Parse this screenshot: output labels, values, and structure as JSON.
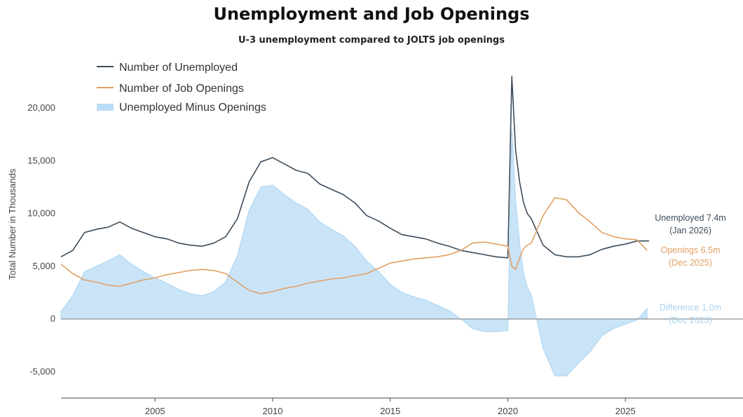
{
  "chart_data": {
    "type": "line",
    "title": "Unemployment and Job Openings",
    "subtitle": "U-3 unemployment compared to JOLTS job openings",
    "ylabel": "Total Number in Thousands",
    "xlabel": "",
    "xlim": [
      2001.0,
      2030.0
    ],
    "ylim": [
      -7500,
      24000
    ],
    "x_ticks": [
      2005,
      2010,
      2015,
      2020,
      2025
    ],
    "y_ticks": [
      -5000,
      0,
      5000,
      10000,
      15000,
      20000
    ],
    "x_tick_labels": [
      "2005",
      "2010",
      "2015",
      "2020",
      "2025"
    ],
    "y_tick_labels": [
      "-5,000",
      "0",
      "5,000",
      "10,000",
      "15,000",
      "20,000"
    ],
    "grid": false,
    "legend_position": "top-left",
    "series": [
      {
        "name": "Number of Unemployed",
        "type": "line",
        "color": "#3d4c5a",
        "x": [
          2001.0,
          2001.5,
          2002.0,
          2002.5,
          2003.0,
          2003.5,
          2004.0,
          2004.5,
          2005.0,
          2005.5,
          2006.0,
          2006.5,
          2007.0,
          2007.5,
          2008.0,
          2008.5,
          2009.0,
          2009.5,
          2010.0,
          2010.5,
          2011.0,
          2011.5,
          2012.0,
          2012.5,
          2013.0,
          2013.5,
          2014.0,
          2014.5,
          2015.0,
          2015.5,
          2016.0,
          2016.5,
          2017.0,
          2017.5,
          2018.0,
          2018.5,
          2019.0,
          2019.5,
          2020.0,
          2020.17,
          2020.33,
          2020.5,
          2020.67,
          2020.83,
          2021.0,
          2021.5,
          2022.0,
          2022.5,
          2023.0,
          2023.5,
          2024.0,
          2024.5,
          2025.0,
          2025.5,
          2026.0
        ],
        "y": [
          5900,
          6500,
          8200,
          8500,
          8700,
          9200,
          8600,
          8200,
          7800,
          7600,
          7200,
          7000,
          6900,
          7200,
          7800,
          9500,
          13000,
          14900,
          15300,
          14700,
          14100,
          13800,
          12800,
          12300,
          11800,
          11000,
          9800,
          9300,
          8600,
          8000,
          7800,
          7600,
          7200,
          6900,
          6500,
          6300,
          6100,
          5900,
          5800,
          23000,
          16000,
          13000,
          11000,
          10000,
          9500,
          7000,
          6100,
          5900,
          5900,
          6100,
          6600,
          6900,
          7100,
          7400,
          7400
        ]
      },
      {
        "name": "Number of Job Openings",
        "type": "line",
        "color": "#e0a064",
        "x": [
          2001.0,
          2001.5,
          2002.0,
          2002.5,
          2003.0,
          2003.5,
          2004.0,
          2004.5,
          2005.0,
          2005.5,
          2006.0,
          2006.5,
          2007.0,
          2007.5,
          2008.0,
          2008.5,
          2009.0,
          2009.5,
          2010.0,
          2010.5,
          2011.0,
          2011.5,
          2012.0,
          2012.5,
          2013.0,
          2013.5,
          2014.0,
          2014.5,
          2015.0,
          2015.5,
          2016.0,
          2016.5,
          2017.0,
          2017.5,
          2018.0,
          2018.5,
          2019.0,
          2019.5,
          2020.0,
          2020.17,
          2020.33,
          2020.5,
          2020.67,
          2020.83,
          2021.0,
          2021.5,
          2022.0,
          2022.5,
          2023.0,
          2023.5,
          2024.0,
          2024.5,
          2025.0,
          2025.5,
          2025.92
        ],
        "y": [
          5200,
          4300,
          3700,
          3500,
          3200,
          3100,
          3400,
          3700,
          3900,
          4200,
          4400,
          4600,
          4700,
          4600,
          4300,
          3500,
          2700,
          2400,
          2600,
          2900,
          3100,
          3400,
          3600,
          3800,
          3900,
          4100,
          4300,
          4800,
          5300,
          5500,
          5700,
          5800,
          5900,
          6100,
          6500,
          7200,
          7300,
          7100,
          6900,
          5000,
          4700,
          5800,
          6700,
          7000,
          7200,
          9800,
          11500,
          11300,
          10100,
          9200,
          8200,
          7800,
          7600,
          7500,
          6500
        ]
      },
      {
        "name": "Unemployed Minus Openings",
        "type": "area",
        "color": "#a9d3f2",
        "x": [
          2001.0,
          2001.5,
          2002.0,
          2002.5,
          2003.0,
          2003.5,
          2004.0,
          2004.5,
          2005.0,
          2005.5,
          2006.0,
          2006.5,
          2007.0,
          2007.5,
          2008.0,
          2008.5,
          2009.0,
          2009.5,
          2010.0,
          2010.5,
          2011.0,
          2011.5,
          2012.0,
          2012.5,
          2013.0,
          2013.5,
          2014.0,
          2014.5,
          2015.0,
          2015.5,
          2016.0,
          2016.5,
          2017.0,
          2017.5,
          2018.0,
          2018.5,
          2019.0,
          2019.5,
          2020.0,
          2020.17,
          2020.33,
          2020.5,
          2020.67,
          2020.83,
          2021.0,
          2021.5,
          2022.0,
          2022.5,
          2023.0,
          2023.5,
          2024.0,
          2024.5,
          2025.0,
          2025.5,
          2025.92
        ],
        "y": [
          700,
          2200,
          4500,
          5000,
          5500,
          6100,
          5200,
          4500,
          3900,
          3400,
          2800,
          2400,
          2200,
          2600,
          3500,
          6000,
          10300,
          12500,
          12700,
          11800,
          11000,
          10400,
          9200,
          8500,
          7900,
          6900,
          5500,
          4500,
          3300,
          2500,
          2100,
          1800,
          1300,
          800,
          0,
          -900,
          -1200,
          -1200,
          -1100,
          18000,
          11300,
          7200,
          4300,
          3000,
          2300,
          -2800,
          -5400,
          -5400,
          -4200,
          -3100,
          -1600,
          -900,
          -500,
          -100,
          1000
        ]
      }
    ],
    "end_labels": [
      {
        "text": "Unemployed 7.4m",
        "date": "(Jan 2026)",
        "color": "#3d4c5a"
      },
      {
        "text": "Openings 6.5m",
        "date": "(Dec 2025)",
        "color": "#e0a064"
      },
      {
        "text": "Difference 1.0m",
        "date": "(Dec 2025)",
        "color": "#a9d3f2"
      }
    ]
  }
}
